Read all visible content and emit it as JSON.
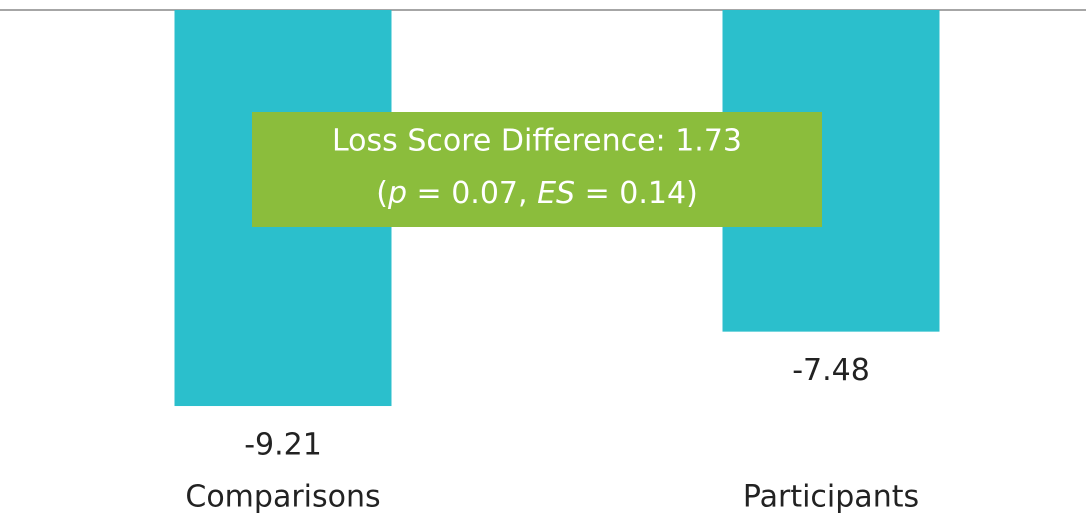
{
  "chart_data": {
    "type": "bar",
    "categories": [
      "Comparisons",
      "Participants"
    ],
    "values": [
      -9.21,
      -7.48
    ],
    "color": "#2bbfcc",
    "ylim": [
      -11,
      0
    ],
    "annotation": {
      "line1": "Loss Score Difference: 1.73",
      "line2": [
        "(",
        "p",
        " = 0.07, ",
        "ES",
        " = 0.14)"
      ],
      "color": "#8bbd3c"
    }
  }
}
